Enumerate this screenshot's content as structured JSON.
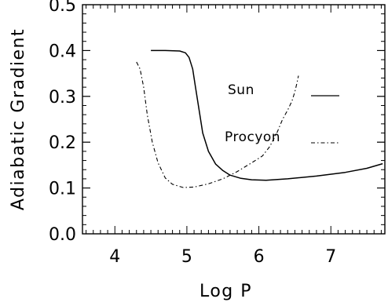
{
  "chart_data": {
    "type": "line",
    "title": "",
    "xlabel": "Log P",
    "ylabel": "Adiabatic Gradient",
    "xlim": [
      3.55,
      7.75
    ],
    "ylim": [
      0.0,
      0.5
    ],
    "x_ticks": [
      4,
      5,
      6,
      7
    ],
    "x_tick_labels": [
      "4",
      "5",
      "6",
      "7"
    ],
    "y_ticks": [
      0.0,
      0.1,
      0.2,
      0.3,
      0.4,
      0.5
    ],
    "y_tick_labels": [
      "0.0",
      "0.1",
      "0.2",
      "0.3",
      "0.4",
      "0.5"
    ],
    "x_minor_step": 0.1,
    "y_minor_step": 0.02,
    "grid": false,
    "legend_position": "inside-right",
    "series": [
      {
        "name": "Sun",
        "line_style": "solid",
        "color": "#000000",
        "points": [
          [
            4.5,
            0.4
          ],
          [
            4.7,
            0.4
          ],
          [
            4.9,
            0.399
          ],
          [
            4.98,
            0.395
          ],
          [
            5.03,
            0.385
          ],
          [
            5.08,
            0.36
          ],
          [
            5.12,
            0.32
          ],
          [
            5.17,
            0.27
          ],
          [
            5.22,
            0.22
          ],
          [
            5.3,
            0.18
          ],
          [
            5.4,
            0.152
          ],
          [
            5.5,
            0.138
          ],
          [
            5.6,
            0.128
          ],
          [
            5.75,
            0.121
          ],
          [
            5.9,
            0.118
          ],
          [
            6.1,
            0.117
          ],
          [
            6.4,
            0.12
          ],
          [
            6.8,
            0.126
          ],
          [
            7.2,
            0.134
          ],
          [
            7.5,
            0.143
          ],
          [
            7.72,
            0.153
          ]
        ]
      },
      {
        "name": "Procyon",
        "line_style": "dashdot",
        "color": "#000000",
        "points": [
          [
            4.3,
            0.375
          ],
          [
            4.35,
            0.36
          ],
          [
            4.4,
            0.32
          ],
          [
            4.45,
            0.26
          ],
          [
            4.52,
            0.2
          ],
          [
            4.6,
            0.155
          ],
          [
            4.7,
            0.122
          ],
          [
            4.8,
            0.108
          ],
          [
            4.95,
            0.101
          ],
          [
            5.1,
            0.102
          ],
          [
            5.3,
            0.109
          ],
          [
            5.5,
            0.12
          ],
          [
            5.7,
            0.136
          ],
          [
            5.9,
            0.155
          ],
          [
            6.05,
            0.17
          ],
          [
            6.15,
            0.19
          ],
          [
            6.25,
            0.22
          ],
          [
            6.33,
            0.25
          ],
          [
            6.4,
            0.27
          ],
          [
            6.46,
            0.29
          ],
          [
            6.5,
            0.31
          ],
          [
            6.53,
            0.33
          ],
          [
            6.55,
            0.345
          ]
        ]
      }
    ],
    "legend": [
      {
        "label": "Sun",
        "line_style": "solid"
      },
      {
        "label": "Procyon",
        "line_style": "dashdot"
      }
    ]
  }
}
